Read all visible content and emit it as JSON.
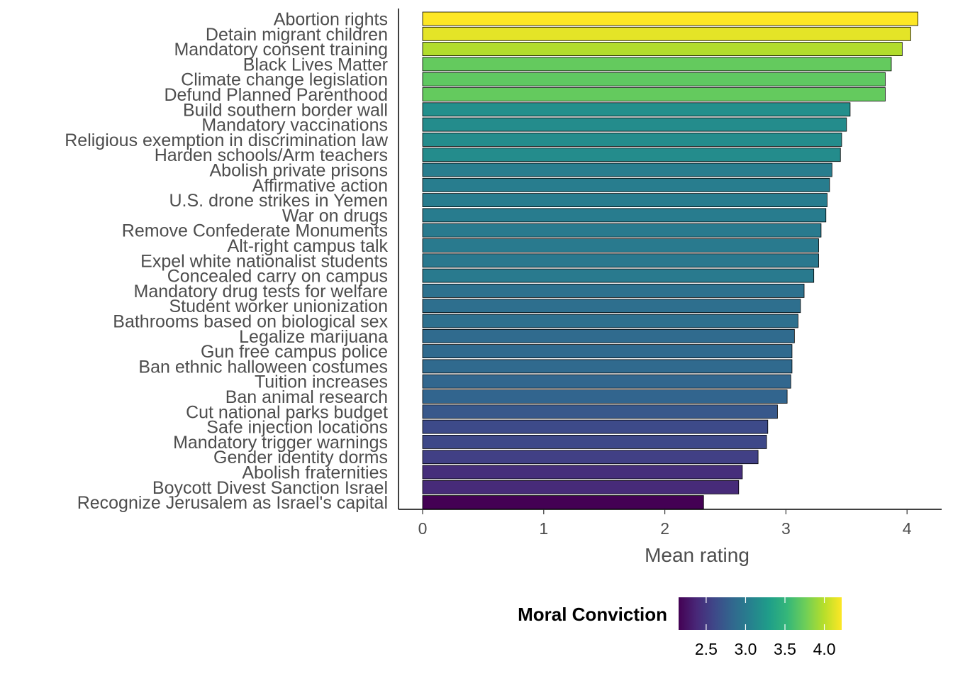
{
  "chart_data": {
    "type": "bar",
    "orientation": "horizontal",
    "categories": [
      "Abortion rights",
      "Detain migrant children",
      "Mandatory consent training",
      "Black Lives Matter",
      "Climate change legislation",
      "Defund Planned Parenthood",
      "Build southern border wall",
      "Mandatory vaccinations",
      "Religious exemption in discrimination law",
      "Harden schools/Arm teachers",
      "Abolish private prisons",
      "Affirmative action",
      "U.S. drone strikes in Yemen",
      "War on drugs",
      "Remove Confederate Monuments",
      "Alt-right campus talk",
      "Expel white nationalist students",
      "Concealed carry on campus",
      "Mandatory drug tests for welfare",
      "Student worker unionization",
      "Bathrooms based on biological sex",
      "Legalize marijuana",
      "Gun free campus police",
      "Ban ethnic halloween costumes",
      "Tuition increases",
      "Ban animal research",
      "Cut national parks budget",
      "Safe injection locations",
      "Mandatory trigger warnings",
      "Gender identity dorms",
      "Abolish fraternities",
      "Boycott Divest Sanction Israel",
      "Recognize Jerusalem as Israel's capital"
    ],
    "values": [
      4.09,
      4.03,
      3.96,
      3.87,
      3.82,
      3.82,
      3.53,
      3.5,
      3.46,
      3.45,
      3.38,
      3.36,
      3.34,
      3.33,
      3.29,
      3.27,
      3.27,
      3.23,
      3.15,
      3.12,
      3.1,
      3.07,
      3.05,
      3.05,
      3.04,
      3.01,
      2.93,
      2.85,
      2.84,
      2.77,
      2.64,
      2.61,
      2.32
    ],
    "conviction": [
      4.22,
      4.14,
      3.98,
      3.72,
      3.7,
      3.72,
      3.18,
      3.15,
      3.15,
      3.15,
      3.03,
      3.03,
      3.02,
      3.02,
      3.0,
      3.0,
      2.98,
      3.0,
      2.92,
      2.9,
      2.91,
      2.87,
      2.86,
      2.86,
      2.83,
      2.82,
      2.72,
      2.62,
      2.6,
      2.55,
      2.42,
      2.4,
      2.15
    ],
    "xlabel": "Mean rating",
    "ylabel": "",
    "xlim": [
      0,
      4.2
    ],
    "xticks": [
      "0",
      "1",
      "2",
      "3",
      "4"
    ],
    "grid": false,
    "colormap": "viridis",
    "legend": {
      "title": "Moral Conviction",
      "placement": "bottom",
      "range": [
        2.15,
        4.22
      ],
      "ticks": [
        "2.5",
        "3.0",
        "3.5",
        "4.0"
      ]
    },
    "colors": {
      "viridis": [
        "#440154",
        "#482878",
        "#3e4989",
        "#31688e",
        "#26828e",
        "#1f9e89",
        "#35b779",
        "#6ece58",
        "#b5de2b",
        "#fde725"
      ],
      "bar_outline": "#000000",
      "text": "#4d4d4d"
    }
  }
}
